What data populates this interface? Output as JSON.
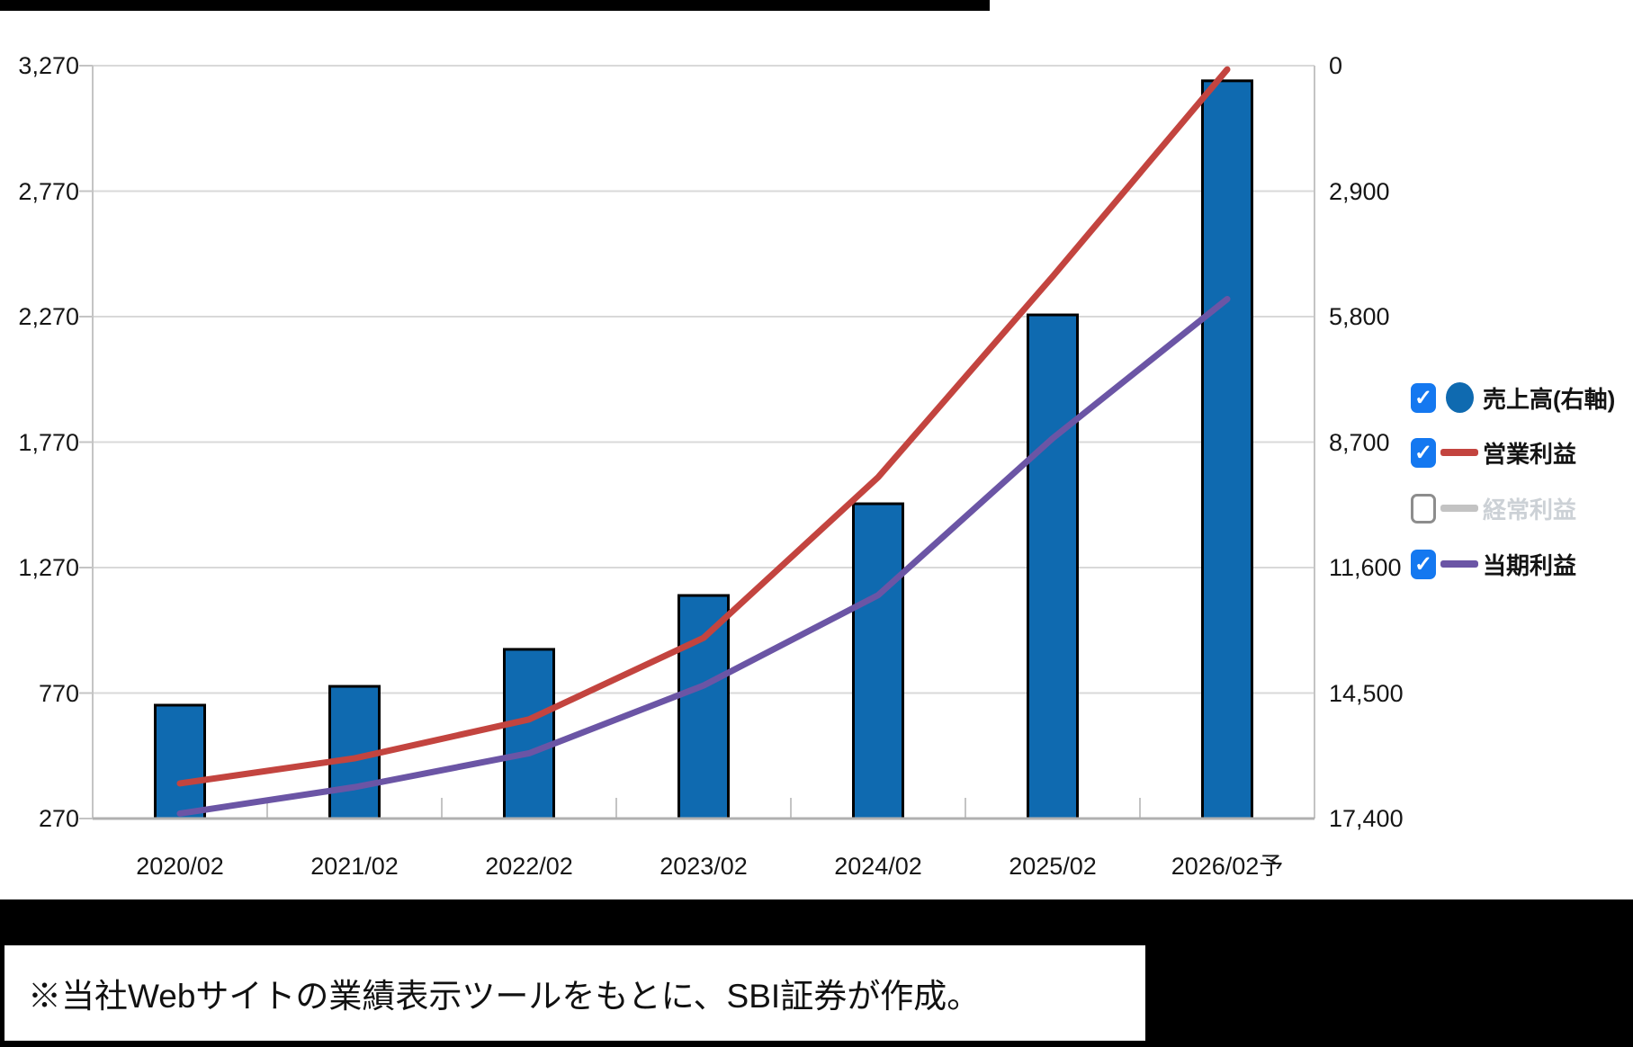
{
  "colors": {
    "bar_blue": "#0f6ab0",
    "operating_red": "#c3443f",
    "ordinary_gray": "#c3c3c3",
    "net_purple": "#6b55a5",
    "gridline": "#d9d9d9",
    "axis_line": "#c4c4c4",
    "bottom_axis_line": "#b0b0b0",
    "checkbox_blue": "#1478f0",
    "panel_bg": "#ffffff",
    "frame_bg": "#000000"
  },
  "chart_data": {
    "type": "bar",
    "subtype": "combo-bar-line-dual-axis",
    "title": "",
    "categories": [
      "2020/02",
      "2021/02",
      "2022/02",
      "2023/02",
      "2024/02",
      "2025/02",
      "2026/02予"
    ],
    "series": [
      {
        "name": "売上高(右軸)",
        "type": "bar",
        "axis": "right",
        "color": "#0f6ab0",
        "visible": true,
        "values": [
          2620,
          3055,
          3910,
          5155,
          7275,
          11640,
          17050
        ]
      },
      {
        "name": "営業利益",
        "type": "line",
        "axis": "left",
        "color": "#c3443f",
        "visible": true,
        "values": [
          410,
          510,
          665,
          990,
          1630,
          2430,
          3255
        ]
      },
      {
        "name": "経常利益",
        "type": "line",
        "axis": "left",
        "color": "#c3c3c3",
        "visible": false,
        "values": []
      },
      {
        "name": "当期利益",
        "type": "line",
        "axis": "left",
        "color": "#6b55a5",
        "visible": true,
        "values": [
          290,
          395,
          530,
          800,
          1160,
          1785,
          2340
        ]
      }
    ],
    "left_axis": {
      "tick_labels": [
        "3,270",
        "2,770",
        "2,270",
        "1,770",
        "1,270",
        "770",
        "270"
      ],
      "min": 270,
      "max": 3270
    },
    "right_axis": {
      "tick_labels": [
        "17,400",
        "14,500",
        "11,600",
        "8,700",
        "5,800",
        "2,900",
        "0"
      ],
      "min": 0,
      "max": 17400
    },
    "grid": true,
    "legend_position": "right"
  },
  "legend": {
    "items": [
      {
        "label": "売上高(右軸)",
        "checked": true,
        "symbol": "circle",
        "color": "#0f6ab0",
        "enabled": true
      },
      {
        "label": "営業利益",
        "checked": true,
        "symbol": "line",
        "color": "#c3443f",
        "enabled": true
      },
      {
        "label": "経常利益",
        "checked": false,
        "symbol": "line",
        "color": "#c3c3c3",
        "enabled": false
      },
      {
        "label": "当期利益",
        "checked": true,
        "symbol": "line",
        "color": "#6b55a5",
        "enabled": true
      }
    ]
  },
  "note": {
    "text": "※当社Webサイトの業績表示ツールをもとに、SBI証券が作成。"
  }
}
